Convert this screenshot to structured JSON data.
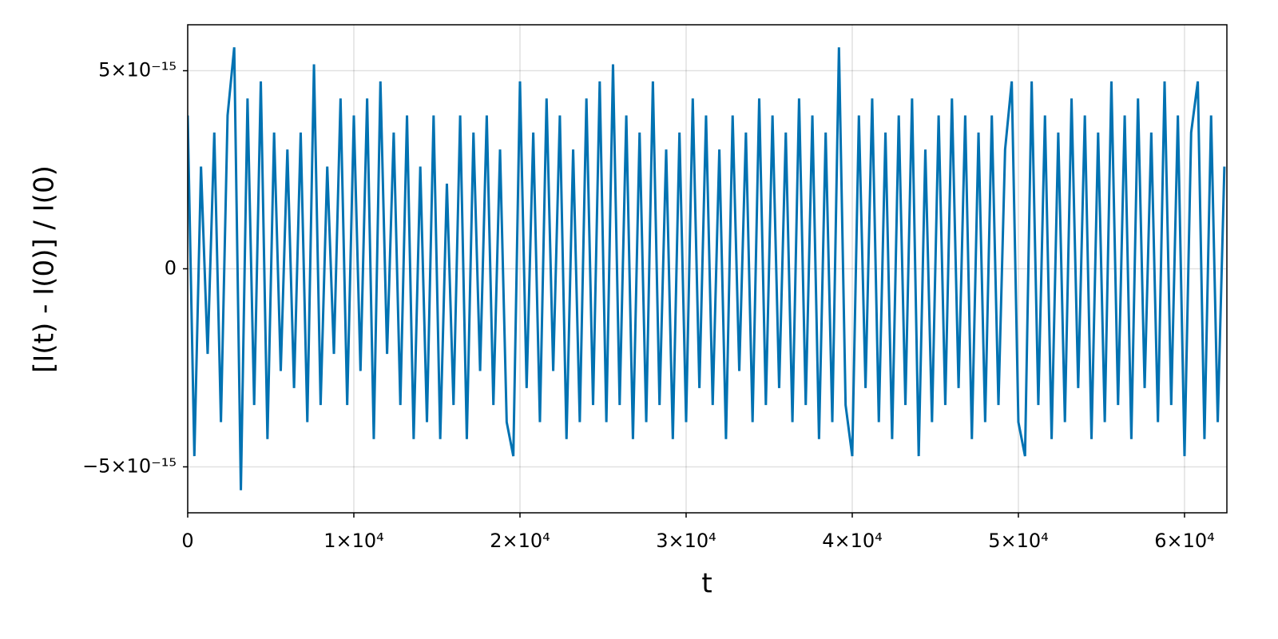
{
  "chart_data": {
    "type": "line",
    "xlabel": "t",
    "ylabel": "[I(t) - I(0)] / I(0)",
    "color": "#0072b2",
    "grid": true,
    "xlim": [
      0,
      62550
    ],
    "ylim": [
      -6.16e-15,
      6.16e-15
    ],
    "xticks": [
      0,
      {
        "value": 10000,
        "label": "1×10⁴"
      },
      {
        "value": 20000,
        "label": "2×10⁴"
      },
      {
        "value": 30000,
        "label": "3×10⁴"
      },
      {
        "value": 40000,
        "label": "4×10⁴"
      },
      {
        "value": 50000,
        "label": "5×10⁴"
      },
      {
        "value": 60000,
        "label": "6×10⁴"
      }
    ],
    "yticks": [
      {
        "value": -5e-15,
        "label": "−5×10⁻¹⁵"
      },
      0,
      {
        "value": 5e-15,
        "label": "5×10⁻¹⁵"
      }
    ],
    "x": [
      0,
      400,
      800,
      1200,
      1600,
      2000,
      2400,
      2800,
      3200,
      3600,
      4000,
      4400,
      4800,
      5200,
      5600,
      6000,
      6400,
      6800,
      7200,
      7600,
      8000,
      8400,
      8800,
      9200,
      9600,
      10000,
      10400,
      10800,
      11200,
      11600,
      12000,
      12400,
      12800,
      13200,
      13600,
      14000,
      14400,
      14800,
      15200,
      15600,
      16000,
      16400,
      16800,
      17200,
      17600,
      18000,
      18400,
      18800,
      19200,
      19600,
      20000,
      20400,
      20800,
      21200,
      21600,
      22000,
      22400,
      22800,
      23200,
      23600,
      24000,
      24400,
      24800,
      25200,
      25600,
      26000,
      26400,
      26800,
      27200,
      27600,
      28000,
      28400,
      28800,
      29200,
      29600,
      30000,
      30400,
      30800,
      31200,
      31600,
      32000,
      32400,
      32800,
      33200,
      33600,
      34000,
      34400,
      34800,
      35200,
      35600,
      36000,
      36400,
      36800,
      37200,
      37600,
      38000,
      38400,
      38800,
      39200,
      39600,
      40000,
      40400,
      40800,
      41200,
      41600,
      42000,
      42400,
      42800,
      43200,
      43600,
      44000,
      44400,
      44800,
      45200,
      45600,
      46000,
      46400,
      46800,
      47200,
      47600,
      48000,
      48400,
      48800,
      49200,
      49600,
      50000,
      50400,
      50800,
      51200,
      51600,
      52000,
      52400,
      52800,
      53200,
      53600,
      54000,
      54400,
      54800,
      55200,
      55600,
      56000,
      56400,
      56800,
      57200,
      57600,
      58000,
      58400,
      58800,
      59200,
      59600,
      60000,
      60400,
      60800,
      61200,
      61600,
      62000,
      62400
    ],
    "values": [
      3.87e-15,
      -4.73e-15,
      2.58e-15,
      -2.15e-15,
      3.44e-15,
      -3.87e-15,
      3.87e-15,
      5.59e-15,
      -5.59e-15,
      4.3e-15,
      -3.44e-15,
      4.73e-15,
      -4.3e-15,
      3.44e-15,
      -2.58e-15,
      3.01e-15,
      -3.01e-15,
      3.44e-15,
      -3.87e-15,
      5.16e-15,
      -3.44e-15,
      2.58e-15,
      -2.15e-15,
      4.3e-15,
      -3.44e-15,
      3.87e-15,
      -2.58e-15,
      4.3e-15,
      -4.3e-15,
      4.73e-15,
      -2.15e-15,
      3.44e-15,
      -3.44e-15,
      3.87e-15,
      -4.3e-15,
      2.58e-15,
      -3.87e-15,
      3.87e-15,
      -4.3e-15,
      2.15e-15,
      -3.44e-15,
      3.87e-15,
      -4.3e-15,
      3.44e-15,
      -2.58e-15,
      3.87e-15,
      -3.44e-15,
      3.01e-15,
      -3.87e-15,
      -4.73e-15,
      4.73e-15,
      -3.01e-15,
      3.44e-15,
      -3.87e-15,
      4.3e-15,
      -2.58e-15,
      3.87e-15,
      -4.3e-15,
      3.01e-15,
      -3.87e-15,
      4.3e-15,
      -3.44e-15,
      4.73e-15,
      -3.87e-15,
      5.16e-15,
      -3.44e-15,
      3.87e-15,
      -4.3e-15,
      3.44e-15,
      -3.87e-15,
      4.73e-15,
      -3.44e-15,
      3.01e-15,
      -4.3e-15,
      3.44e-15,
      -3.87e-15,
      4.3e-15,
      -3.01e-15,
      3.87e-15,
      -3.44e-15,
      3.01e-15,
      -4.3e-15,
      3.87e-15,
      -2.58e-15,
      3.44e-15,
      -3.87e-15,
      4.3e-15,
      -3.44e-15,
      3.87e-15,
      -3.01e-15,
      3.44e-15,
      -3.87e-15,
      4.3e-15,
      -3.44e-15,
      3.87e-15,
      -4.3e-15,
      3.44e-15,
      -3.87e-15,
      5.59e-15,
      -3.44e-15,
      -4.73e-15,
      3.87e-15,
      -3.01e-15,
      4.3e-15,
      -3.87e-15,
      3.44e-15,
      -4.3e-15,
      3.87e-15,
      -3.44e-15,
      4.3e-15,
      -4.73e-15,
      3.01e-15,
      -3.87e-15,
      3.87e-15,
      -3.44e-15,
      4.3e-15,
      -3.01e-15,
      3.87e-15,
      -4.3e-15,
      3.44e-15,
      -3.87e-15,
      3.87e-15,
      -3.44e-15,
      3.01e-15,
      4.73e-15,
      -3.87e-15,
      -4.73e-15,
      4.73e-15,
      -3.44e-15,
      3.87e-15,
      -4.3e-15,
      3.44e-15,
      -3.87e-15,
      4.3e-15,
      -3.01e-15,
      3.87e-15,
      -4.3e-15,
      3.44e-15,
      -3.87e-15,
      4.73e-15,
      -3.44e-15,
      3.87e-15,
      -4.3e-15,
      4.3e-15,
      -3.01e-15,
      3.44e-15,
      -3.87e-15,
      4.73e-15,
      -3.44e-15,
      3.87e-15,
      -4.73e-15,
      3.44e-15,
      4.73e-15,
      -4.3e-15,
      3.87e-15,
      -3.87e-15,
      2.58e-15
    ]
  }
}
